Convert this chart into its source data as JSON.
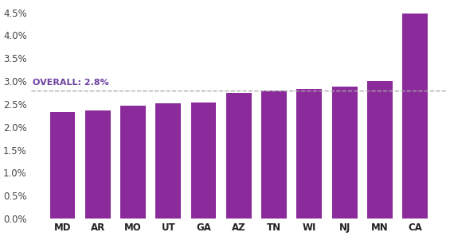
{
  "categories": [
    "MD",
    "AR",
    "MO",
    "UT",
    "GA",
    "AZ",
    "TN",
    "WI",
    "NJ",
    "MN",
    "CA"
  ],
  "values": [
    0.0232,
    0.0236,
    0.0246,
    0.0252,
    0.0254,
    0.0275,
    0.028,
    0.0283,
    0.0288,
    0.03,
    0.0448
  ],
  "bar_color": "#8B2B9B",
  "overall_line": 0.028,
  "overall_label": "OVERALL: 2.8%",
  "overall_label_color": "#6B3FA0",
  "ylim": [
    0,
    0.047
  ],
  "yticks": [
    0.0,
    0.005,
    0.01,
    0.015,
    0.02,
    0.025,
    0.03,
    0.035,
    0.04,
    0.045
  ],
  "background_color": "#ffffff",
  "bar_width": 0.72,
  "dashed_line_color": "#aaaaaa"
}
